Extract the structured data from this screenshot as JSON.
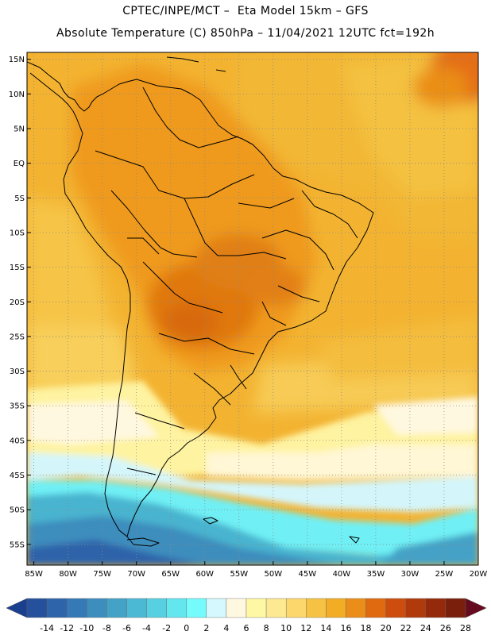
{
  "header": {
    "line1": "CPTEC/INPE/MCT –  Eta Model 15km – GFS",
    "line2": "Absolute Temperature (C) 850hPa – 11/04/2021 12UTC fct=192h"
  },
  "map": {
    "lon_range": [
      -86,
      -20
    ],
    "lat_range": [
      -58,
      16
    ],
    "lat_ticks": [
      {
        "value": 15,
        "label": "15N"
      },
      {
        "value": 10,
        "label": "10N"
      },
      {
        "value": 5,
        "label": "5N"
      },
      {
        "value": 0,
        "label": "EQ"
      },
      {
        "value": -5,
        "label": "5S"
      },
      {
        "value": -10,
        "label": "10S"
      },
      {
        "value": -15,
        "label": "15S"
      },
      {
        "value": -20,
        "label": "20S"
      },
      {
        "value": -25,
        "label": "25S"
      },
      {
        "value": -30,
        "label": "30S"
      },
      {
        "value": -35,
        "label": "35S"
      },
      {
        "value": -40,
        "label": "40S"
      },
      {
        "value": -45,
        "label": "45S"
      },
      {
        "value": -50,
        "label": "50S"
      },
      {
        "value": -55,
        "label": "55S"
      }
    ],
    "lon_ticks": [
      {
        "value": -85,
        "label": "85W"
      },
      {
        "value": -80,
        "label": "80W"
      },
      {
        "value": -75,
        "label": "75W"
      },
      {
        "value": -70,
        "label": "70W"
      },
      {
        "value": -65,
        "label": "65W"
      },
      {
        "value": -60,
        "label": "60W"
      },
      {
        "value": -55,
        "label": "55W"
      },
      {
        "value": -50,
        "label": "50W"
      },
      {
        "value": -45,
        "label": "45W"
      },
      {
        "value": -40,
        "label": "40W"
      },
      {
        "value": -35,
        "label": "35W"
      },
      {
        "value": -30,
        "label": "30W"
      },
      {
        "value": -25,
        "label": "25W"
      },
      {
        "value": -20,
        "label": "20W"
      }
    ],
    "grid": true
  },
  "colorbar": {
    "labels": [
      "-14",
      "-12",
      "-10",
      "-8",
      "-6",
      "-4",
      "-2",
      "0",
      "2",
      "4",
      "6",
      "8",
      "10",
      "12",
      "14",
      "16",
      "18",
      "20",
      "22",
      "24",
      "26",
      "28"
    ],
    "colors": [
      "#1b3f8f",
      "#24509c",
      "#2e64aa",
      "#3579b6",
      "#3d8dbd",
      "#44a2c6",
      "#4cb9d4",
      "#57d0e2",
      "#64e6ef",
      "#75fbfb",
      "#d4f8fd",
      "#fff8e0",
      "#fef8a4",
      "#fde991",
      "#fcd76b",
      "#f6c243",
      "#f2ad25",
      "#ea8e19",
      "#e06a0f",
      "#cc4d0d",
      "#b03a0b",
      "#942a0a",
      "#7a1f0c",
      "#660a1e"
    ]
  }
}
